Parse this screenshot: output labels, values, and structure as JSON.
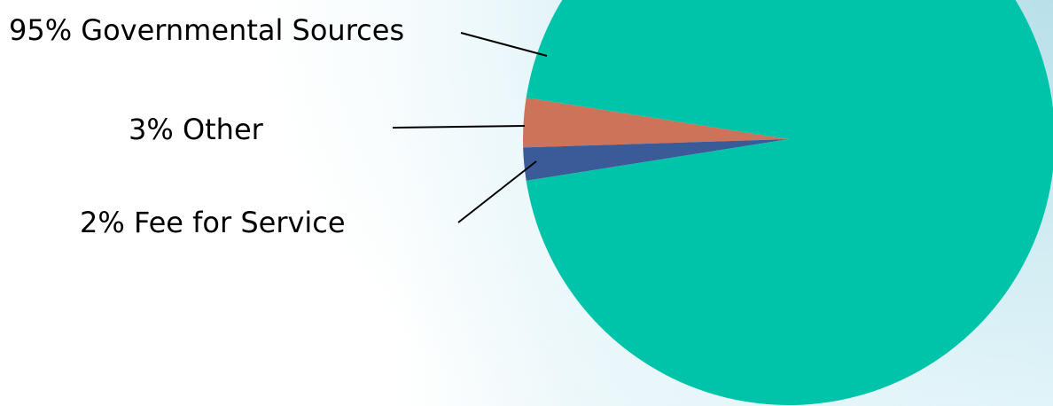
{
  "chart_data": {
    "type": "pie",
    "slices": [
      {
        "label": "95% Governmental Sources",
        "value": 95,
        "color": "#00c4aa"
      },
      {
        "label": "3% Other",
        "value": 3,
        "color": "#cc735a"
      },
      {
        "label": "2% Fee for Service",
        "value": 2,
        "color": "#3b5a98"
      }
    ],
    "legend": "none"
  }
}
